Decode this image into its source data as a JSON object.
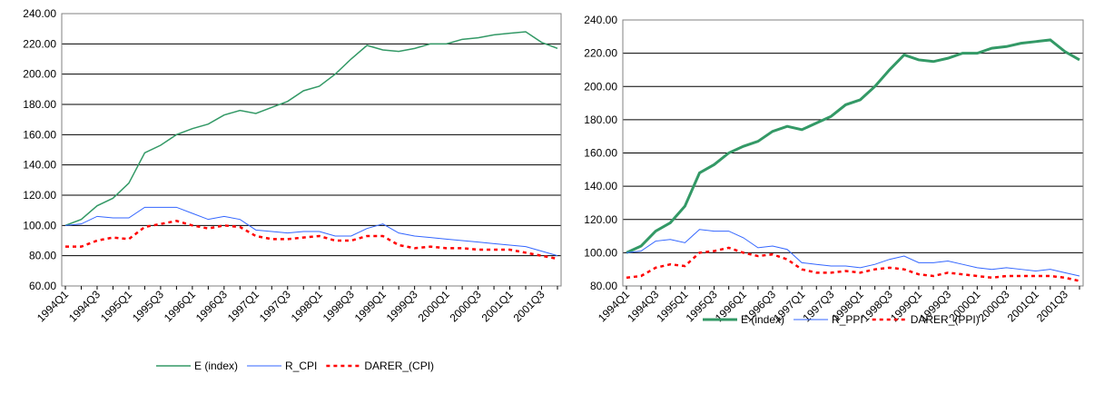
{
  "chart_data": [
    {
      "type": "line",
      "categories": [
        "1994Q1",
        null,
        "1994Q3",
        null,
        "1995Q1",
        null,
        "1995Q3",
        null,
        "1996Q1",
        null,
        "1996Q3",
        null,
        "1997Q1",
        null,
        "1997Q3",
        null,
        "1998Q1",
        null,
        "1998Q3",
        null,
        "1999Q1",
        null,
        "1999Q3",
        null,
        "2000Q1",
        null,
        "2000Q3",
        null,
        "2001Q1",
        null,
        "2001Q3",
        null
      ],
      "series": [
        {
          "name": "E (index)",
          "color": "#339966",
          "style": "solid",
          "values": [
            100,
            104,
            113,
            118,
            128,
            148,
            153,
            160,
            164,
            167,
            173,
            176,
            174,
            178,
            182,
            189,
            192,
            200,
            210,
            219,
            216,
            215,
            217,
            220,
            220,
            223,
            224,
            226,
            227,
            228,
            221,
            217
          ]
        },
        {
          "name": "R_CPI",
          "color": "#3366ff",
          "style": "solid",
          "values": [
            100,
            101,
            106,
            105,
            105,
            112,
            112,
            112,
            108,
            104,
            106,
            104,
            97,
            96,
            95,
            96,
            96,
            93,
            93,
            98,
            101,
            95,
            93,
            92,
            91,
            90,
            89,
            88,
            87,
            86,
            83,
            80
          ]
        },
        {
          "name": "DARER_(CPI)",
          "color": "#ff0000",
          "style": "dashed",
          "values": [
            86,
            86,
            90,
            92,
            91,
            99,
            101,
            103,
            100,
            98,
            100,
            99,
            93,
            91,
            91,
            92,
            93,
            90,
            90,
            93,
            93,
            87,
            85,
            86,
            85,
            85,
            84,
            84,
            84,
            82,
            80,
            78
          ]
        }
      ],
      "ylim": [
        60,
        240
      ],
      "yticks": [
        {
          "value": 60,
          "label": "60.00"
        },
        {
          "value": 80,
          "label": "80.00"
        },
        {
          "value": 100,
          "label": "100.00"
        },
        {
          "value": 120,
          "label": "120.00"
        },
        {
          "value": 140,
          "label": "140.00"
        },
        {
          "value": 160,
          "label": "160.00"
        },
        {
          "value": 180,
          "label": "180.00"
        },
        {
          "value": 200,
          "label": "200.00"
        },
        {
          "value": 220,
          "label": "220.00"
        },
        {
          "value": 240,
          "label": "240.00"
        }
      ],
      "grid": true
    },
    {
      "type": "line",
      "categories": [
        "1994Q1",
        null,
        "1994Q3",
        null,
        "1995Q1",
        null,
        "1995Q3",
        null,
        "1996Q1",
        null,
        "1996Q3",
        null,
        "1997Q1",
        null,
        "1997Q3",
        null,
        "1998Q1",
        null,
        "1998Q3",
        null,
        "1999Q1",
        null,
        "1999Q3",
        null,
        "2000Q1",
        null,
        "2000Q3",
        null,
        "2001Q1",
        null,
        "2001Q3",
        null
      ],
      "series": [
        {
          "name": "E (index)",
          "color": "#339966",
          "style": "solid",
          "values": [
            100,
            104,
            113,
            118,
            128,
            148,
            153,
            160,
            164,
            167,
            173,
            176,
            174,
            178,
            182,
            189,
            192,
            200,
            210,
            219,
            216,
            215,
            217,
            220,
            220,
            223,
            224,
            226,
            227,
            228,
            221,
            216
          ]
        },
        {
          "name": "R_PPI",
          "color": "#3366ff",
          "style": "solid",
          "values": [
            100,
            101,
            107,
            108,
            106,
            114,
            113,
            113,
            109,
            103,
            104,
            102,
            94,
            93,
            92,
            92,
            91,
            93,
            96,
            98,
            94,
            94,
            95,
            93,
            91,
            90,
            91,
            90,
            89,
            90,
            88,
            86
          ]
        },
        {
          "name": "DARER_(PPI)",
          "color": "#ff0000",
          "style": "dashed",
          "values": [
            85,
            86,
            91,
            93,
            92,
            100,
            101,
            103,
            100,
            98,
            99,
            96,
            90,
            88,
            88,
            89,
            88,
            90,
            91,
            90,
            87,
            86,
            88,
            87,
            86,
            85,
            86,
            86,
            86,
            86,
            85,
            83
          ]
        }
      ],
      "ylim": [
        80,
        240
      ],
      "yticks": [
        {
          "value": 80,
          "label": "80.00"
        },
        {
          "value": 100,
          "label": "100.00"
        },
        {
          "value": 120,
          "label": "120.00"
        },
        {
          "value": 140,
          "label": "140.00"
        },
        {
          "value": 160,
          "label": "160.00"
        },
        {
          "value": 180,
          "label": "180.00"
        },
        {
          "value": 200,
          "label": "200.00"
        },
        {
          "value": 220,
          "label": "220.00"
        },
        {
          "value": 240,
          "label": "240.00"
        }
      ],
      "grid": true
    }
  ]
}
